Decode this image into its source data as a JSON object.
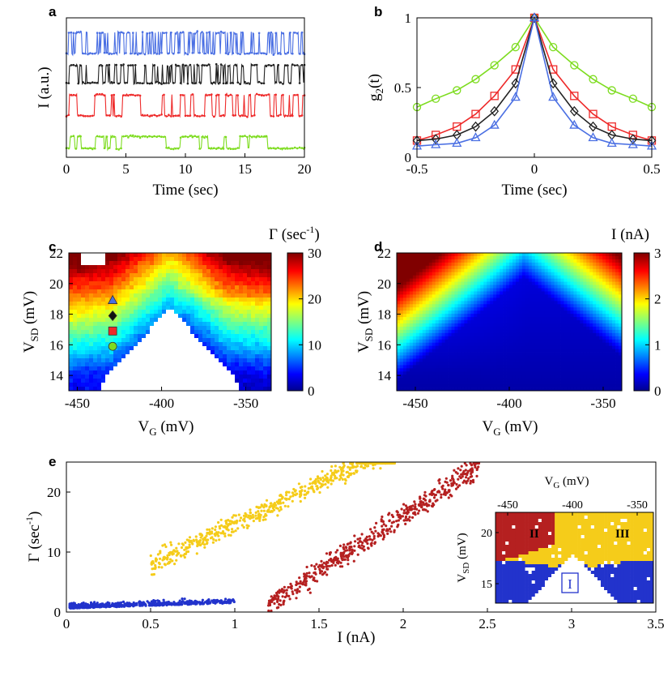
{
  "chart_data": [
    {
      "panel": "a",
      "type": "line",
      "title": "",
      "xlabel": "Time (sec)",
      "ylabel": "I (a.u.)",
      "xlim": [
        0,
        20
      ],
      "xticks": [
        "0",
        "5",
        "10",
        "15",
        "20"
      ],
      "series": [
        {
          "name": "blue",
          "color": "#4a6fe3",
          "level_low": 3.5,
          "level_high": 4.2
        },
        {
          "name": "black",
          "color": "#222222",
          "level_low": 2.5,
          "level_high": 3.1
        },
        {
          "name": "red",
          "color": "#ee2a2a",
          "level_low": 1.4,
          "level_high": 2.1
        },
        {
          "name": "green",
          "color": "#7ddc1f",
          "level_low": 0.3,
          "level_high": 0.7
        }
      ]
    },
    {
      "panel": "b",
      "type": "line",
      "xlabel": "Time (sec)",
      "ylabel": "g2(t)",
      "ylabel_main": "g",
      "ylabel_sub": "2",
      "ylabel_tail": "(t)",
      "xlim": [
        -0.5,
        0.5
      ],
      "ylim": [
        0,
        1
      ],
      "xticks": [
        "-0.5",
        "0",
        "0.5"
      ],
      "yticks": [
        "0",
        "0.5",
        "1"
      ],
      "x": [
        -0.5,
        -0.42,
        -0.33,
        -0.25,
        -0.17,
        -0.08,
        0,
        0.08,
        0.17,
        0.25,
        0.33,
        0.42,
        0.5
      ],
      "series": [
        {
          "name": "green",
          "color": "#7ddc1f",
          "marker": "circle",
          "values": [
            0.36,
            0.42,
            0.48,
            0.56,
            0.66,
            0.79,
            1.0,
            0.79,
            0.66,
            0.56,
            0.48,
            0.42,
            0.36
          ]
        },
        {
          "name": "red",
          "color": "#ee2a2a",
          "marker": "square",
          "values": [
            0.12,
            0.16,
            0.22,
            0.31,
            0.44,
            0.63,
            1.0,
            0.63,
            0.44,
            0.31,
            0.22,
            0.16,
            0.12
          ]
        },
        {
          "name": "black",
          "color": "#222222",
          "marker": "diamond",
          "values": [
            0.12,
            0.13,
            0.16,
            0.22,
            0.33,
            0.53,
            1.0,
            0.53,
            0.33,
            0.22,
            0.16,
            0.13,
            0.12
          ]
        },
        {
          "name": "blue",
          "color": "#4a6fe3",
          "marker": "triangle",
          "values": [
            0.08,
            0.09,
            0.1,
            0.14,
            0.23,
            0.43,
            1.0,
            0.43,
            0.23,
            0.14,
            0.1,
            0.09,
            0.08
          ]
        }
      ]
    },
    {
      "panel": "c",
      "type": "heatmap",
      "xlabel": "VG (mV)",
      "xlabel_main": "V",
      "xlabel_sub": "G",
      "xlabel_tail": " (mV)",
      "ylabel": "VSD (mV)",
      "ylabel_main": "V",
      "ylabel_sub": "SD",
      "ylabel_tail": " (mV)",
      "xlim": [
        -460,
        -340
      ],
      "ylim": [
        13,
        22
      ],
      "xticks": [
        "-450",
        "-400",
        "-350"
      ],
      "yticks": [
        "14",
        "16",
        "18",
        "20",
        "22"
      ],
      "colorbar_label": "Γ (sec-1)",
      "colorbar_label_main": "Γ (sec",
      "colorbar_label_sup": "-1",
      "colorbar_label_tail": ")",
      "colorbar_range": [
        0,
        30
      ],
      "colorbar_ticks": [
        "0",
        "10",
        "20",
        "30"
      ],
      "markers": [
        {
          "shape": "triangle",
          "color": "#4a6fe3",
          "vg": -434,
          "vsd": 18.9
        },
        {
          "shape": "diamond",
          "color": "#111111",
          "vg": -434,
          "vsd": 17.9
        },
        {
          "shape": "square",
          "color": "#ee2a2a",
          "vg": -434,
          "vsd": 16.9
        },
        {
          "shape": "circle",
          "color": "#7ddc1f",
          "vg": -434,
          "vsd": 15.9
        }
      ]
    },
    {
      "panel": "d",
      "type": "heatmap",
      "xlabel": "VG (mV)",
      "xlabel_main": "V",
      "xlabel_sub": "G",
      "xlabel_tail": " (mV)",
      "ylabel": "VSD (mV)",
      "ylabel_main": "V",
      "ylabel_sub": "SD",
      "ylabel_tail": " (mV)",
      "xlim": [
        -460,
        -340
      ],
      "ylim": [
        13,
        22
      ],
      "xticks": [
        "-450",
        "-400",
        "-350"
      ],
      "yticks": [
        "14",
        "16",
        "18",
        "20",
        "22"
      ],
      "colorbar_label": "I (nA)",
      "colorbar_range": [
        0,
        3
      ],
      "colorbar_ticks": [
        "0",
        "1",
        "2",
        "3"
      ]
    },
    {
      "panel": "e",
      "type": "scatter",
      "xlabel": "I (nA)",
      "ylabel": "Γ (sec-1)",
      "ylabel_main": "Γ (sec",
      "ylabel_sup": "-1",
      "ylabel_tail": ")",
      "xlim": [
        0,
        3.5
      ],
      "ylim": [
        0,
        25
      ],
      "xticks": [
        "0",
        "0.5",
        "1",
        "1.5",
        "2",
        "2.5",
        "3",
        "3.5"
      ],
      "yticks": [
        "0",
        "10",
        "20"
      ],
      "series": [
        {
          "name": "region I",
          "color": "#2233cc",
          "x_range": [
            0.02,
            1.0
          ],
          "y_base": 0.5,
          "y_slope": 1.0
        },
        {
          "name": "region II",
          "color": "#b52020",
          "x_range": [
            1.2,
            2.45
          ],
          "y_base": -21,
          "y_slope": 18.5
        },
        {
          "name": "region III",
          "color": "#f5cc1a",
          "x_range": [
            0.5,
            1.95
          ],
          "y_base": 1.3,
          "y_slope": 13.4
        }
      ],
      "inset": {
        "xlabel": "VG (mV)",
        "xlabel_main": "V",
        "xlabel_sub": "G",
        "xlabel_tail": " (mV)",
        "ylabel": "VSD (mV)",
        "ylabel_main": "V",
        "ylabel_sub": "SD",
        "ylabel_tail": " (mV)",
        "xticks": [
          "-450",
          "-400",
          "-350"
        ],
        "yticks": [
          "15",
          "20"
        ],
        "region_labels": [
          "I",
          "II",
          "III"
        ]
      }
    }
  ],
  "panel_labels": {
    "a": "a",
    "b": "b",
    "c": "c",
    "d": "d",
    "e": "e"
  }
}
